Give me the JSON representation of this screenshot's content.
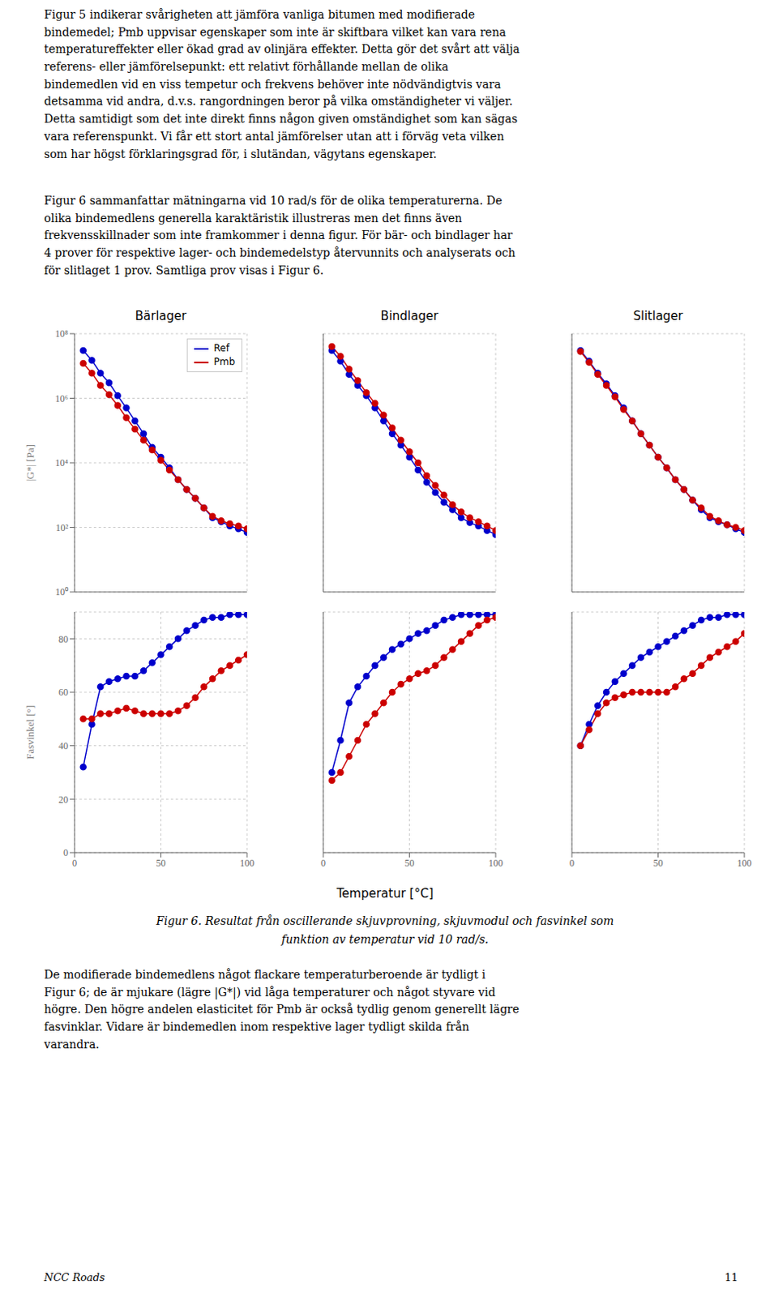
{
  "chart_data": [
    {
      "type": "line",
      "title": "Bärlager",
      "ylabel": "|G*| [Pa]",
      "x": [
        5,
        10,
        15,
        20,
        25,
        30,
        35,
        40,
        45,
        50,
        55,
        60,
        65,
        70,
        75,
        80,
        85,
        90,
        95,
        100
      ],
      "series": [
        {
          "name": "Ref",
          "color": "#0000cc",
          "values": [
            30000000.0,
            15000000.0,
            6000000.0,
            3000000.0,
            1200000.0,
            500000.0,
            200000.0,
            80000.0,
            30000.0,
            15000.0,
            7000.0,
            3000.0,
            1500.0,
            800.0,
            400.0,
            200.0,
            150.0,
            110.0,
            90.0,
            70.0
          ]
        },
        {
          "name": "Pmb",
          "color": "#cc0000",
          "values": [
            12000000.0,
            6000000.0,
            2500000.0,
            1300000.0,
            600000.0,
            250000.0,
            110000.0,
            50000.0,
            25000.0,
            12000.0,
            6000.0,
            3000.0,
            1500.0,
            800.0,
            400.0,
            220.0,
            160.0,
            130.0,
            110.0,
            90.0
          ]
        }
      ],
      "xlim": [
        0,
        100
      ],
      "xticks": [
        0,
        50,
        100
      ],
      "ylim": [
        1,
        100000000
      ],
      "yticks": [
        {
          "value": 1,
          "label": "10⁰"
        },
        {
          "value": 100,
          "label": "10²"
        },
        {
          "value": 10000,
          "label": "10⁴"
        },
        {
          "value": 1000000,
          "label": "10⁶"
        },
        {
          "value": 100000000,
          "label": "10⁸"
        }
      ],
      "log": "y",
      "grid": true,
      "legend": "upper right",
      "marker": "o",
      "tick_labels": "y",
      "annotations": [
        "Figur 5 indikerar svårigheten att jämföra vanliga bitumen med modifierade\nbindemedel; Pmb uppvisar egenskaper som inte är skiftbara vilket kan vara rena\ntemperatureffekter eller ökad grad av olinjära effekter. Detta gör det svårt att välja\nreferens- eller jämförelsepunkt: ett relativt förhållande mellan de olika\nbindemedlen vid en viss tempetur och frekvens behöver inte nödvändigtvis vara\ndetsamma vid andra, d.v.s. rangordningen beror på vilka omständigheter vi väljer.\nDetta samtidigt som det inte direkt finns någon given omständighet som kan sägas\nvara referenspunkt. Vi får ett stort antal jämförelser utan att i förväg veta vilken\nsom har högst förklaringsgrad för, i slutändan, vägytans egenskaper.",
        "Figur 6 sammanfattar mätningarna vid 10 rad/s för de olika temperaturerna. De\nolika bindemedlens generella karaktäristik illustreras men det finns även\nfrekvensskillnader som inte framkommer i denna figur. För bär- och bindlager har\n4 prover för respektive lager- och bindemedelstyp återvunnits och analyserats och\nför slitlaget 1 prov. Samtliga prov visas i Figur 6.",
        "Figur 6. Resultat från oscillerande skjuvprovning, skjuvmodul och fasvinkel som",
        "funktion av temperatur vid 10 rad/s.",
        "De modifierade bindemedlens något flackare temperaturberoende är tydligt i\nFigur 6; de är mjukare (lägre |G*|) vid låga temperaturer och något styvare vid\nhögre. Den högre andelen elasticitet för Pmb är också tydlig genom generellt lägre\nfasvinklar. Vidare är bindemedlen inom respektive lager tydligt skilda från\nvarandra.",
        "NCC Roads",
        "11"
      ]
    },
    {
      "type": "line",
      "title": "Bindlager",
      "x": [
        5,
        10,
        15,
        20,
        25,
        30,
        35,
        40,
        45,
        50,
        55,
        60,
        65,
        70,
        75,
        80,
        85,
        90,
        95,
        100
      ],
      "series": [
        {
          "name": "Ref",
          "color": "#0000cc",
          "values": [
            30000000.0,
            14000000.0,
            5500000.0,
            2500000.0,
            1200000.0,
            500000.0,
            200000.0,
            80000.0,
            35000.0,
            15000.0,
            6000.0,
            2500.0,
            1200.0,
            600.0,
            350.0,
            200.0,
            140.0,
            110.0,
            80.0,
            60.0
          ]
        },
        {
          "name": "Pmb",
          "color": "#cc0000",
          "values": [
            40000000.0,
            20000000.0,
            8000000.0,
            3500000.0,
            1500000.0,
            700000.0,
            300000.0,
            120000.0,
            50000.0,
            22000.0,
            10000.0,
            4000.0,
            2000.0,
            1000.0,
            500.0,
            300.0,
            200.0,
            150.0,
            110.0,
            80.0
          ]
        }
      ],
      "xlim": [
        0,
        100
      ],
      "xticks": [
        0,
        50,
        100
      ],
      "ylim": [
        1,
        100000000
      ],
      "yticks": [
        {
          "value": 1,
          "label": "10⁰"
        },
        {
          "value": 100,
          "label": "10²"
        },
        {
          "value": 10000,
          "label": "10⁴"
        },
        {
          "value": 1000000,
          "label": "10⁶"
        },
        {
          "value": 100000000,
          "label": "10⁸"
        }
      ],
      "log": "y",
      "grid": true,
      "marker": "o",
      "tick_labels": false
    },
    {
      "type": "line",
      "title": "Slitlager",
      "x": [
        5,
        10,
        15,
        20,
        25,
        30,
        35,
        40,
        45,
        50,
        55,
        60,
        65,
        70,
        75,
        80,
        85,
        90,
        95,
        100
      ],
      "series": [
        {
          "name": "Ref",
          "color": "#0000cc",
          "values": [
            30000000.0,
            14000000.0,
            6000000.0,
            2800000.0,
            1200000.0,
            500000.0,
            200000.0,
            80000.0,
            35000.0,
            15000.0,
            7000.0,
            3000.0,
            1500.0,
            700.0,
            350.0,
            200.0,
            150.0,
            120.0,
            90.0,
            70.0
          ]
        },
        {
          "name": "Pmb",
          "color": "#cc0000",
          "values": [
            28000000.0,
            13000000.0,
            5500000.0,
            2500000.0,
            1100000.0,
            450000.0,
            200000.0,
            80000.0,
            35000.0,
            15000.0,
            7000.0,
            3000.0,
            1500.0,
            700.0,
            400.0,
            220.0,
            160.0,
            120.0,
            100.0,
            80.0
          ]
        }
      ],
      "xlim": [
        0,
        100
      ],
      "xticks": [
        0,
        50,
        100
      ],
      "ylim": [
        1,
        100000000
      ],
      "yticks": [
        {
          "value": 1,
          "label": "10⁰"
        },
        {
          "value": 100,
          "label": "10²"
        },
        {
          "value": 10000,
          "label": "10⁴"
        },
        {
          "value": 1000000,
          "label": "10⁶"
        },
        {
          "value": 100000000,
          "label": "10⁸"
        }
      ],
      "log": "y",
      "grid": true,
      "marker": "o",
      "tick_labels": false
    },
    {
      "type": "line",
      "ylabel": "Fasvinkel [°]",
      "x": [
        5,
        10,
        15,
        20,
        25,
        30,
        35,
        40,
        45,
        50,
        55,
        60,
        65,
        70,
        75,
        80,
        85,
        90,
        95,
        100
      ],
      "series": [
        {
          "name": "Ref",
          "color": "#0000cc",
          "values": [
            32,
            48,
            62,
            64,
            65,
            66,
            66,
            68,
            71,
            74,
            77,
            80,
            83,
            85,
            87,
            88,
            88,
            89,
            89,
            89
          ]
        },
        {
          "name": "Pmb",
          "color": "#cc0000",
          "values": [
            50,
            50,
            52,
            52,
            53,
            54,
            53,
            52,
            52,
            52,
            52,
            53,
            55,
            58,
            62,
            65,
            68,
            70,
            72,
            74
          ]
        }
      ],
      "xlim": [
        0,
        100
      ],
      "xticks": [
        0,
        50,
        100
      ],
      "ylim": [
        0,
        90
      ],
      "yticks": [
        0,
        20,
        40,
        60,
        80
      ],
      "grid": true,
      "marker": "o"
    },
    {
      "type": "line",
      "xlabel": "Temperatur [°C]",
      "x": [
        5,
        10,
        15,
        20,
        25,
        30,
        35,
        40,
        45,
        50,
        55,
        60,
        65,
        70,
        75,
        80,
        85,
        90,
        95,
        100
      ],
      "series": [
        {
          "name": "Ref",
          "color": "#0000cc",
          "values": [
            30,
            42,
            56,
            62,
            66,
            70,
            73,
            76,
            78,
            80,
            82,
            83,
            85,
            87,
            88,
            89,
            89,
            89,
            89,
            89
          ]
        },
        {
          "name": "Pmb",
          "color": "#cc0000",
          "values": [
            27,
            30,
            36,
            42,
            48,
            52,
            56,
            60,
            63,
            65,
            67,
            68,
            70,
            73,
            76,
            79,
            82,
            85,
            87,
            88
          ]
        }
      ],
      "xlim": [
        0,
        100
      ],
      "xticks": [
        0,
        50,
        100
      ],
      "ylim": [
        0,
        90
      ],
      "yticks": [
        0,
        20,
        40,
        60,
        80
      ],
      "grid": true,
      "marker": "o",
      "tick_labels": "x"
    },
    {
      "type": "line",
      "x": [
        5,
        10,
        15,
        20,
        25,
        30,
        35,
        40,
        45,
        50,
        55,
        60,
        65,
        70,
        75,
        80,
        85,
        90,
        95,
        100
      ],
      "series": [
        {
          "name": "Ref",
          "color": "#0000cc",
          "values": [
            40,
            48,
            55,
            60,
            64,
            67,
            70,
            73,
            75,
            77,
            79,
            81,
            83,
            85,
            87,
            88,
            88,
            89,
            89,
            89
          ]
        },
        {
          "name": "Pmb",
          "color": "#cc0000",
          "values": [
            40,
            46,
            52,
            56,
            58,
            59,
            60,
            60,
            60,
            60,
            60,
            62,
            65,
            67,
            70,
            73,
            75,
            77,
            79,
            82
          ]
        }
      ],
      "xlim": [
        0,
        100
      ],
      "xticks": [
        0,
        50,
        100
      ],
      "ylim": [
        0,
        90
      ],
      "yticks": [
        0,
        20,
        40,
        60,
        80
      ],
      "grid": true,
      "marker": "o",
      "tick_labels": "x"
    }
  ]
}
